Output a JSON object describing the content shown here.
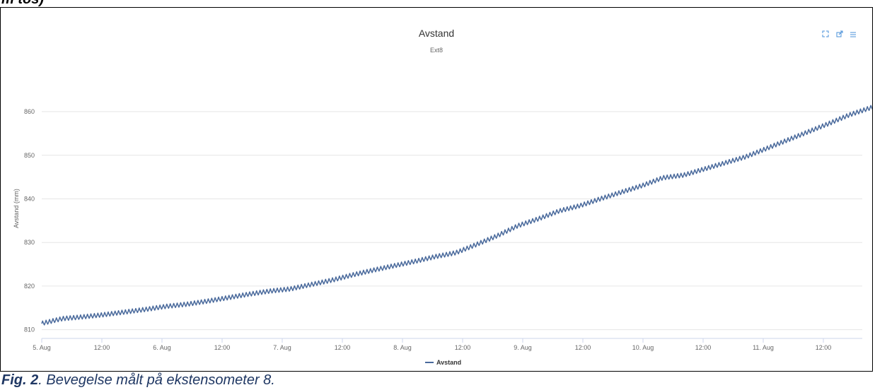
{
  "header_fragment": "m tos)",
  "toolbar": {
    "icons": [
      "fullscreen-icon",
      "export-icon",
      "menu-icon"
    ],
    "color": "#4a90d9"
  },
  "caption": {
    "label": "Fig. 2",
    "text": ". Bevegelse målt på ekstensometer 8."
  },
  "chart_data": {
    "type": "line",
    "title": "Avstand",
    "subtitle": "Ext8",
    "ylabel": "Avstand (mm)",
    "xlabel": "",
    "ylim": [
      808,
      866
    ],
    "y_ticks": [
      810,
      820,
      830,
      840,
      850,
      860
    ],
    "x_ticks": [
      "5. Aug",
      "12:00",
      "6. Aug",
      "12:00",
      "7. Aug",
      "12:00",
      "8. Aug",
      "12:00",
      "9. Aug",
      "12:00",
      "10. Aug",
      "12:00",
      "11. Aug",
      "12:00"
    ],
    "x_range_days": [
      0,
      7.18
    ],
    "grid": true,
    "legend_position": "bottom-center",
    "series": [
      {
        "name": "Avstand",
        "color": "#4a6a9c",
        "points": [
          [
            0.0,
            811.4
          ],
          [
            0.2,
            812.5
          ],
          [
            0.4,
            812.9
          ],
          [
            0.6,
            813.4
          ],
          [
            0.8,
            814.0
          ],
          [
            1.0,
            814.6
          ],
          [
            1.2,
            815.3
          ],
          [
            1.4,
            815.8
          ],
          [
            1.6,
            816.5
          ],
          [
            1.8,
            817.3
          ],
          [
            2.0,
            818.1
          ],
          [
            2.2,
            818.8
          ],
          [
            2.4,
            819.3
          ],
          [
            2.6,
            820.3
          ],
          [
            2.8,
            821.3
          ],
          [
            3.0,
            822.5
          ],
          [
            3.2,
            823.6
          ],
          [
            3.4,
            824.6
          ],
          [
            3.6,
            825.6
          ],
          [
            3.8,
            826.7
          ],
          [
            4.0,
            827.6
          ],
          [
            4.2,
            829.5
          ],
          [
            4.4,
            831.5
          ],
          [
            4.6,
            833.8
          ],
          [
            4.8,
            835.4
          ],
          [
            5.0,
            837.2
          ],
          [
            5.2,
            838.4
          ],
          [
            5.4,
            840.0
          ],
          [
            5.6,
            841.5
          ],
          [
            5.8,
            843.0
          ],
          [
            6.0,
            844.8
          ],
          [
            6.2,
            845.4
          ],
          [
            6.4,
            846.8
          ],
          [
            6.6,
            848.2
          ],
          [
            6.8,
            849.6
          ],
          [
            7.0,
            851.5
          ],
          [
            7.2,
            853.4
          ],
          [
            7.4,
            855.3
          ],
          [
            7.6,
            857.2
          ],
          [
            7.8,
            859.2
          ],
          [
            8.0,
            860.8
          ],
          [
            8.2,
            862.2
          ],
          [
            8.34,
            863.0
          ]
        ]
      }
    ]
  }
}
